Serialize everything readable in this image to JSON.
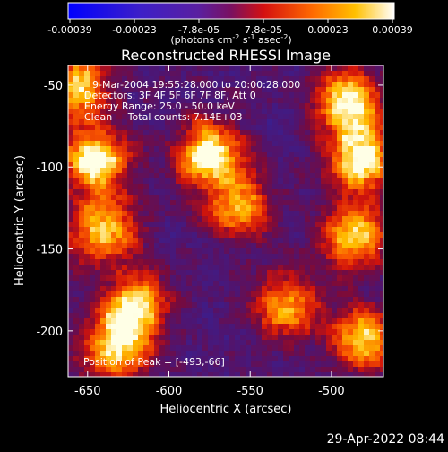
{
  "colorbar": {
    "tick_labels": [
      "-0.00039",
      "-0.00023",
      "-7.8e-05",
      "7.8e-05",
      "0.00023",
      "0.00039"
    ],
    "unit_main": "(photons cm",
    "unit_exp1": "-2",
    "unit_mid": " s",
    "unit_exp2": "-1",
    "unit_end": " asec",
    "unit_exp3": "-2",
    "unit_close": ")",
    "range": [
      -0.00039,
      0.00039
    ]
  },
  "chart_data": {
    "type": "heatmap",
    "title": "Reconstructed RHESSI Image",
    "xlabel": "Heliocentric X (arcsec)",
    "ylabel": "Heliocentric Y (arcsec)",
    "xlim": [
      -662,
      -468
    ],
    "ylim": [
      -228,
      -38
    ],
    "x_ticks": [
      -650,
      -600,
      -550,
      -500
    ],
    "x_tick_labels": [
      "-650",
      "-600",
      "-550",
      "-500"
    ],
    "y_ticks": [
      -50,
      -100,
      -150,
      -200
    ],
    "y_tick_labels": [
      "-50",
      "-100",
      "-150",
      "-200"
    ],
    "annotations": [
      "9-Mar-2004 19:55:28.000 to 20:00:28.000",
      "Detectors: 3F 4F 5F 6F 7F 8F, Att 0",
      "Energy Range: 25.0 - 50.0 keV",
      "Clean     Total counts: 7.14E+03"
    ],
    "peak_label": "Position of Peak = [-493,-66]",
    "peak_position": [
      -493,
      -66
    ],
    "bright_regions": [
      {
        "x": -645,
        "y": -96,
        "level": 1.0
      },
      {
        "x": -655,
        "y": -50,
        "level": 0.78
      },
      {
        "x": -640,
        "y": -140,
        "level": 0.8
      },
      {
        "x": -620,
        "y": -185,
        "level": 0.82
      },
      {
        "x": -633,
        "y": -210,
        "level": 0.88
      },
      {
        "x": -575,
        "y": -92,
        "level": 0.95
      },
      {
        "x": -557,
        "y": -125,
        "level": 0.72
      },
      {
        "x": -528,
        "y": -185,
        "level": 0.74
      },
      {
        "x": -490,
        "y": -60,
        "level": 0.92
      },
      {
        "x": -482,
        "y": -95,
        "level": 0.96
      },
      {
        "x": -486,
        "y": -142,
        "level": 0.85
      },
      {
        "x": -480,
        "y": -205,
        "level": 0.8
      }
    ]
  },
  "timestamp": "29-Apr-2022 08:44"
}
